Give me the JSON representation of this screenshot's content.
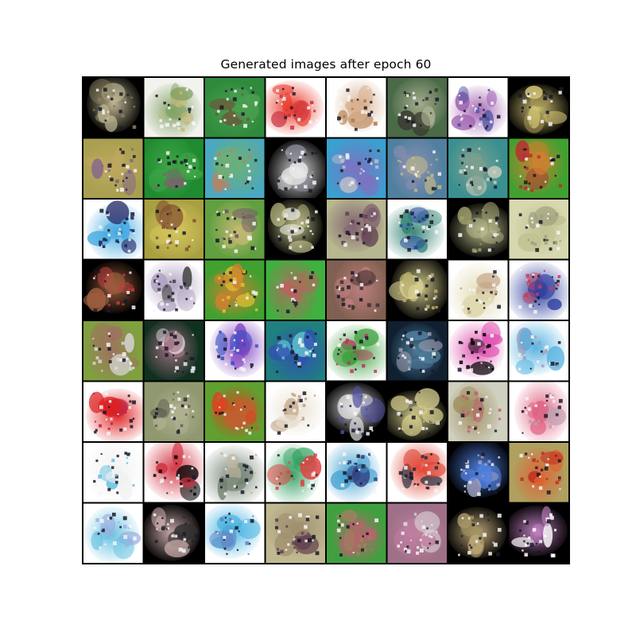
{
  "title": "Generated images after epoch 60",
  "grid": {
    "rows": 8,
    "cols": 8,
    "tiles": [
      [
        "#000000",
        "#c8c09a",
        "#8a8060"
      ],
      [
        "#f2f2ee",
        "#7fa060",
        "#c8b878"
      ],
      [
        "#2f8a3c",
        "#4aa050",
        "#6b5a3a"
      ],
      [
        "#ffffff",
        "#e83020",
        "#c83040"
      ],
      [
        "#ffffff",
        "#d8b090",
        "#b07848"
      ],
      [
        "#4a6a48",
        "#a8b090",
        "#3a3a30"
      ],
      [
        "#ffffff",
        "#a060b0",
        "#4850a0"
      ],
      [
        "#000000",
        "#d8c878",
        "#a09050"
      ],
      [
        "#a8a050",
        "#c0a860",
        "#806090"
      ],
      [
        "#1f8a30",
        "#40a848",
        "#806070"
      ],
      [
        "#4aa8c0",
        "#70b070",
        "#c08060"
      ],
      [
        "#000000",
        "#e8e8e8",
        "#9090a0"
      ],
      [
        "#3aa0d0",
        "#8070c0",
        "#c0c0c8"
      ],
      [
        "#5080a0",
        "#9090b0",
        "#c0b888"
      ],
      [
        "#3a9090",
        "#80a090",
        "#d0d0c0"
      ],
      [
        "#40a030",
        "#d08030",
        "#b83030"
      ],
      [
        "#ffffff",
        "#40a8e0",
        "#202060"
      ],
      [
        "#a8a040",
        "#d8c860",
        "#805030"
      ],
      [
        "#60a040",
        "#c0b870",
        "#705070"
      ],
      [
        "#000000",
        "#c8c890",
        "#e8e8e0"
      ],
      [
        "#b8b890",
        "#806070",
        "#604050"
      ],
      [
        "#ffffff",
        "#308070",
        "#2040a0"
      ],
      [
        "#000000",
        "#c0c090",
        "#a0a070"
      ],
      [
        "#d8d8b0",
        "#c0c090",
        "#a0a080"
      ],
      [
        "#000000",
        "#a06040",
        "#c04040"
      ],
      [
        "#ffffff",
        "#b0a0c0",
        "#404040"
      ],
      [
        "#40a030",
        "#d08030",
        "#e0c030"
      ],
      [
        "#40b040",
        "#c06060",
        "#60a050"
      ],
      [
        "#806050",
        "#c08080",
        "#403030"
      ],
      [
        "#000000",
        "#d8d090",
        "#b8b070"
      ],
      [
        "#ffffff",
        "#e0d8b0",
        "#c0a080"
      ],
      [
        "#ffffff",
        "#3040a0",
        "#c04060"
      ],
      [
        "#80a040",
        "#a07060",
        "#d8d8d8"
      ],
      [
        "#103020",
        "#a07080",
        "#e8e8f0"
      ],
      [
        "#ffffff",
        "#8040c0",
        "#3050c0"
      ],
      [
        "#208080",
        "#3050b0",
        "#60c0d0"
      ],
      [
        "#ffffff",
        "#40a040",
        "#c03060"
      ],
      [
        "#102030",
        "#5080a0",
        "#a0a0b0"
      ],
      [
        "#ffffff",
        "#e050b0",
        "#000000"
      ],
      [
        "#ffffff",
        "#50b0e0",
        "#a0a0c0"
      ],
      [
        "#ffffff",
        "#e02020",
        "#c02040"
      ],
      [
        "#909870",
        "#b0b090",
        "#606050"
      ],
      [
        "#60a030",
        "#e04020",
        "#c06030"
      ],
      [
        "#ffffff",
        "#e8e0d0",
        "#c0a080"
      ],
      [
        "#000000",
        "#e8e8e8",
        "#5050a0"
      ],
      [
        "#000000",
        "#d8d090",
        "#c0b880"
      ],
      [
        "#d0d0c0",
        "#a09060",
        "#c06070"
      ],
      [
        "#ffffff",
        "#e06080",
        "#c0a0b0"
      ],
      [
        "#ffffff",
        "#f0f0f0",
        "#60c0e0"
      ],
      [
        "#ffffff",
        "#d03040",
        "#000000"
      ],
      [
        "#ffffff",
        "#708070",
        "#c0b8a0"
      ],
      [
        "#ffffff",
        "#30a060",
        "#e04040"
      ],
      [
        "#ffffff",
        "#40a0d0",
        "#304080"
      ],
      [
        "#ffffff",
        "#e04030",
        "#203040"
      ],
      [
        "#000000",
        "#5080e0",
        "#a0a0c0"
      ],
      [
        "#b0a060",
        "#e06030",
        "#c03020"
      ],
      [
        "#ffffff",
        "#60c0e0",
        "#a0b0e0"
      ],
      [
        "#000000",
        "#d0b0b0",
        "#303030"
      ],
      [
        "#ffffff",
        "#40b0e0",
        "#6080c0"
      ],
      [
        "#c0b890",
        "#a09070",
        "#604050"
      ],
      [
        "#40a040",
        "#c06070",
        "#a08060"
      ],
      [
        "#a07088",
        "#c080a0",
        "#e0e0e0"
      ],
      [
        "#000000",
        "#c8b080",
        "#a09060"
      ],
      [
        "#000000",
        "#c080c0",
        "#ffffff"
      ]
    ]
  }
}
